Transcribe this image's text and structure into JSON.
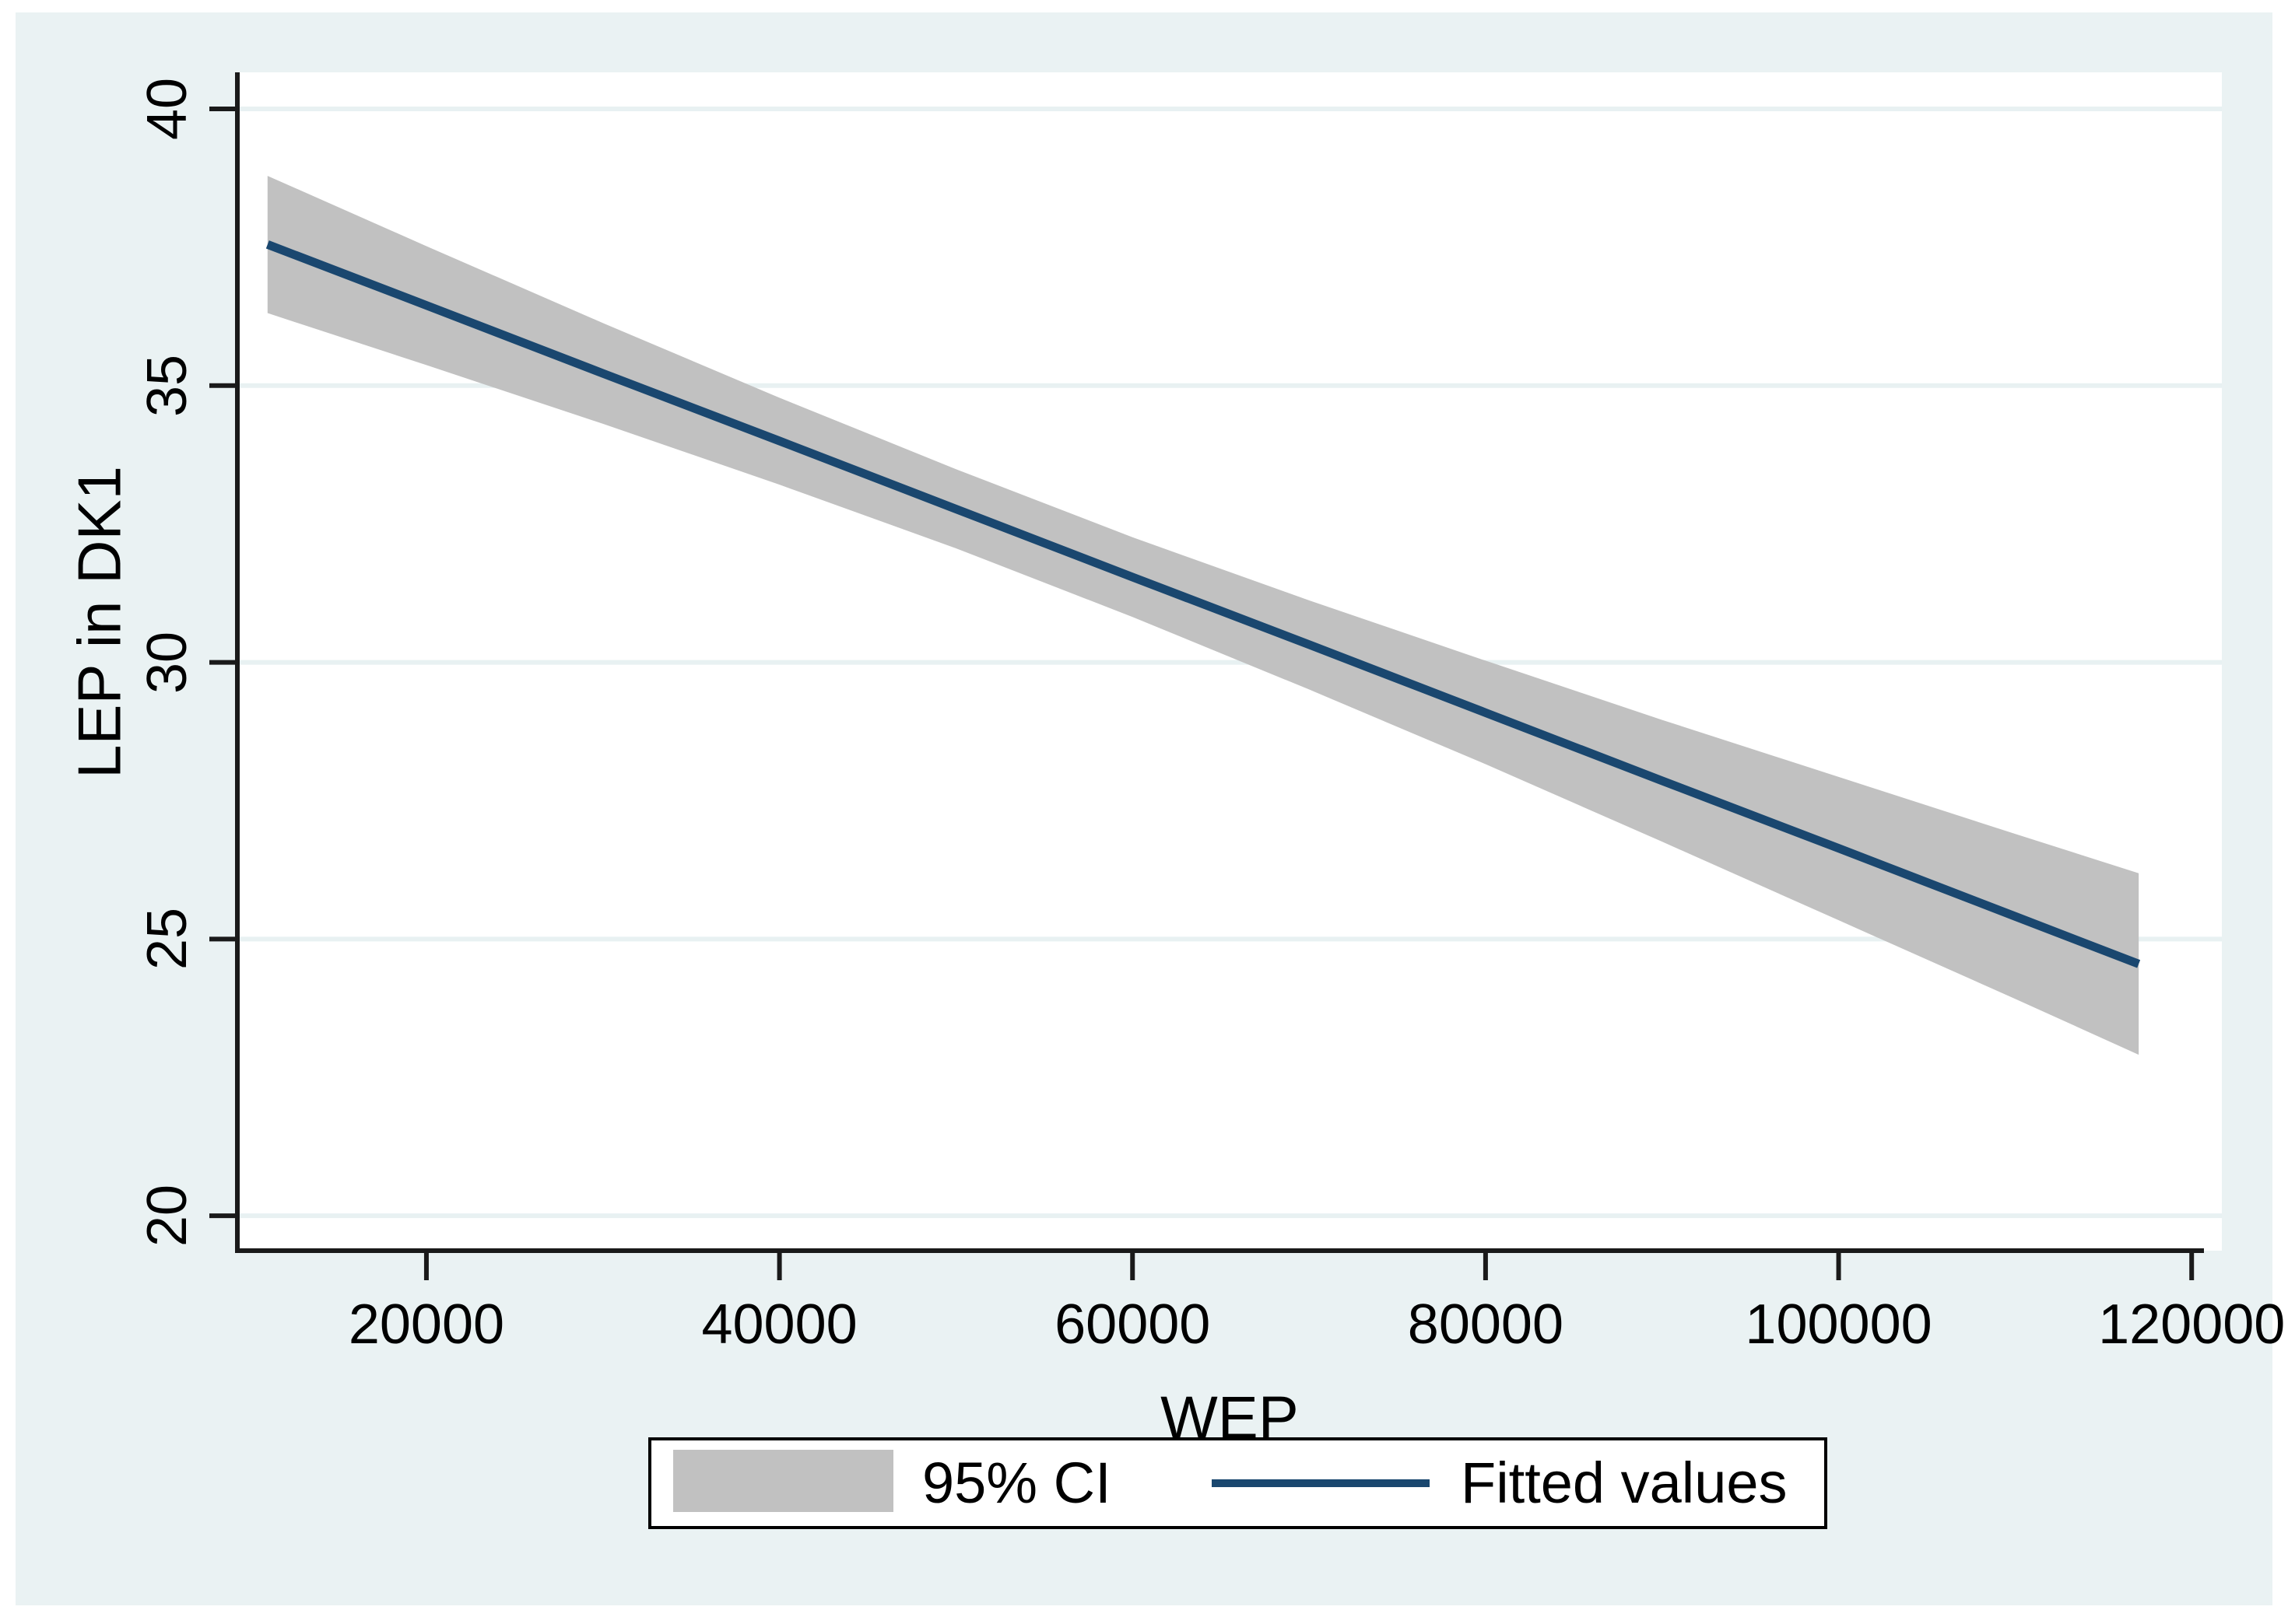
{
  "chart_data": {
    "type": "area",
    "subtype": "linear-fit-with-confidence-band",
    "title": "",
    "xlabel": "WEP",
    "ylabel": "LEP in DK1",
    "x": [
      11000,
      20000,
      30000,
      40000,
      50000,
      60000,
      70000,
      80000,
      90000,
      100000,
      110000,
      117000
    ],
    "series": [
      {
        "name": "95% CI",
        "type": "ci_band",
        "lo": [
          36.31,
          35.37,
          34.31,
          33.21,
          32.06,
          30.82,
          29.51,
          28.16,
          26.76,
          25.34,
          23.92,
          22.91
        ],
        "hi": [
          38.79,
          37.52,
          36.13,
          34.78,
          33.49,
          32.26,
          31.12,
          30.03,
          28.96,
          27.93,
          26.9,
          26.19
        ]
      },
      {
        "name": "Fitted values",
        "type": "line",
        "values": [
          37.55,
          36.45,
          35.22,
          34.0,
          32.77,
          31.54,
          30.32,
          29.09,
          27.86,
          26.64,
          25.41,
          24.55
        ]
      }
    ],
    "xticks": [
      20000,
      40000,
      60000,
      80000,
      100000,
      120000
    ],
    "xtick_labels": [
      "20000",
      "40000",
      "60000",
      "80000",
      "100000",
      "120000"
    ],
    "yticks": [
      20,
      25,
      30,
      35,
      40
    ],
    "ytick_labels": [
      "20",
      "25",
      "30",
      "35",
      "40"
    ],
    "xlim": [
      9290,
      121710
    ],
    "ylim": [
      19.37,
      40.66
    ],
    "grid": "horizontal-only",
    "legend": {
      "position": "bottom-center",
      "items": [
        {
          "label": "95% CI",
          "marker": "area",
          "color": "#c1c1c1"
        },
        {
          "label": "Fitted values",
          "marker": "line",
          "color": "#1a476f"
        }
      ]
    },
    "colors": {
      "panel_bg": "#eaf2f3",
      "plot_bg": "#ffffff",
      "grid": "#e8f1f2",
      "band": "#c1c1c1",
      "line": "#1a476f",
      "axis": "#1a1a1a",
      "text": "#000000",
      "legend_border": "#000000"
    }
  }
}
